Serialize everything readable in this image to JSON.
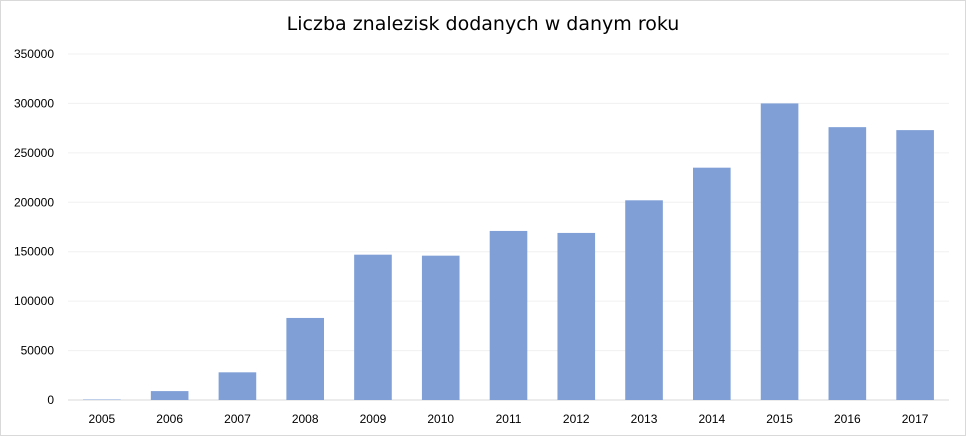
{
  "chart_data": {
    "type": "bar",
    "title": "Liczba znalezisk dodanych w danym roku",
    "xlabel": "",
    "ylabel": "",
    "categories": [
      "2005",
      "2006",
      "2007",
      "2008",
      "2009",
      "2010",
      "2011",
      "2012",
      "2013",
      "2014",
      "2015",
      "2016",
      "2017"
    ],
    "values": [
      500,
      9000,
      28000,
      83000,
      147000,
      146000,
      171000,
      169000,
      202000,
      235000,
      300000,
      276000,
      273000
    ],
    "ylim": [
      0,
      350000
    ],
    "yticks": [
      0,
      50000,
      100000,
      150000,
      200000,
      250000,
      300000,
      350000
    ],
    "grid": true,
    "legend": "none",
    "bar_color": "#7f9fd6",
    "grid_color": "#f0f0f0"
  }
}
